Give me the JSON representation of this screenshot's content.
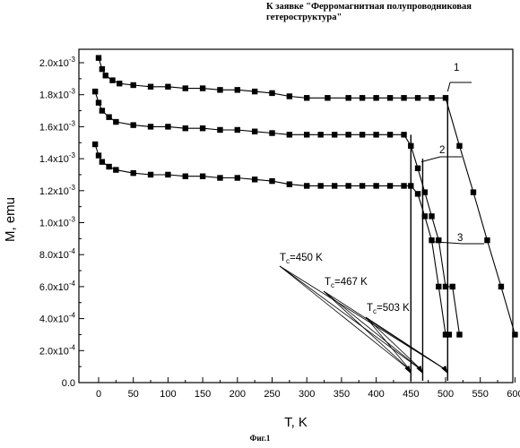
{
  "header": "К заявке \"Ферромагнитная полупроводниковая гетероструктура\"",
  "caption": "Фиг.1",
  "chart_data": {
    "type": "line",
    "xlabel": "T, K",
    "ylabel": "M, emu",
    "xlim": [
      -20,
      620
    ],
    "ylim": [
      0,
      0.0021
    ],
    "x_ticks": [
      0,
      50,
      100,
      150,
      200,
      250,
      300,
      350,
      400,
      450,
      500,
      550,
      600
    ],
    "y_ticks": [
      {
        "value": 0.0,
        "label": "0.0"
      },
      {
        "value": 0.0002,
        "label": "2.0x10-4",
        "mant": "2.0x10",
        "exp": "-4"
      },
      {
        "value": 0.0004,
        "label": "4.0x10-4",
        "mant": "4.0x10",
        "exp": "-4"
      },
      {
        "value": 0.0006,
        "label": "6.0x10-4",
        "mant": "6.0x10",
        "exp": "-4"
      },
      {
        "value": 0.0008,
        "label": "8.0x10-4",
        "mant": "8.0x10",
        "exp": "-4"
      },
      {
        "value": 0.001,
        "label": "1.0x10-3",
        "mant": "1.0x10",
        "exp": "-3"
      },
      {
        "value": 0.0012,
        "label": "1.2x10-3",
        "mant": "1.2x10",
        "exp": "-3"
      },
      {
        "value": 0.0014,
        "label": "1.4x10-3",
        "mant": "1.4x10",
        "exp": "-3"
      },
      {
        "value": 0.0016,
        "label": "1.6x10-3",
        "mant": "1.6x10",
        "exp": "-3"
      },
      {
        "value": 0.0018,
        "label": "1.8x10-3",
        "mant": "1.8x10",
        "exp": "-3"
      },
      {
        "value": 0.002,
        "label": "2.0x10-3",
        "mant": "2.0x10",
        "exp": "-3"
      }
    ],
    "grid": false,
    "series": [
      {
        "name": "1",
        "x": [
          0,
          5,
          10,
          20,
          30,
          50,
          75,
          100,
          125,
          150,
          175,
          200,
          225,
          250,
          275,
          300,
          330,
          360,
          380,
          400,
          420,
          440,
          460,
          480,
          500,
          520,
          540,
          560,
          580,
          600
        ],
        "y": [
          0.00203,
          0.00196,
          0.00192,
          0.00189,
          0.00187,
          0.00186,
          0.00185,
          0.00185,
          0.00184,
          0.00184,
          0.00183,
          0.00183,
          0.00182,
          0.00181,
          0.00179,
          0.00178,
          0.00178,
          0.00178,
          0.00178,
          0.00178,
          0.00178,
          0.00178,
          0.00178,
          0.00178,
          0.00178,
          0.00148,
          0.00119,
          0.00089,
          0.0006,
          0.0003
        ]
      },
      {
        "name": "2",
        "x": [
          -5,
          0,
          5,
          15,
          25,
          50,
          75,
          100,
          125,
          150,
          175,
          200,
          225,
          250,
          275,
          300,
          320,
          340,
          360,
          380,
          400,
          420,
          440,
          450,
          460,
          470,
          480,
          490,
          500,
          510,
          520
        ],
        "y": [
          0.00182,
          0.00175,
          0.0017,
          0.00166,
          0.00163,
          0.00161,
          0.0016,
          0.0016,
          0.00159,
          0.00159,
          0.00158,
          0.00158,
          0.00157,
          0.00156,
          0.00155,
          0.00155,
          0.00155,
          0.00155,
          0.00155,
          0.00155,
          0.00155,
          0.00155,
          0.00155,
          0.00148,
          0.00134,
          0.00119,
          0.00104,
          0.00089,
          0.0006,
          0.0006,
          0.0003
        ]
      },
      {
        "name": "3",
        "x": [
          -5,
          0,
          5,
          15,
          25,
          50,
          75,
          100,
          125,
          150,
          175,
          200,
          225,
          250,
          275,
          300,
          320,
          340,
          360,
          380,
          400,
          420,
          440,
          450,
          460,
          470,
          480,
          490,
          500,
          505
        ],
        "y": [
          0.00149,
          0.00142,
          0.00138,
          0.00135,
          0.00133,
          0.00131,
          0.0013,
          0.0013,
          0.00129,
          0.00129,
          0.00128,
          0.00128,
          0.00127,
          0.00126,
          0.00124,
          0.00123,
          0.00123,
          0.00123,
          0.00123,
          0.00123,
          0.00123,
          0.00123,
          0.00123,
          0.00123,
          0.00118,
          0.00104,
          0.00089,
          0.0006,
          0.0003,
          0.0003
        ]
      }
    ],
    "tc_lines": [
      {
        "T": 450,
        "top": 0.00155,
        "label": "Tc=450 K",
        "sub_base": "T",
        "sub": "c",
        "rest": "=450 K"
      },
      {
        "T": 467,
        "top": 0.0014,
        "label": "Tc=467 K",
        "sub_base": "T",
        "sub": "c",
        "rest": "=467 K"
      },
      {
        "T": 503,
        "top": 0.00178,
        "label": "Tc=503 K",
        "sub_base": "T",
        "sub": "c",
        "rest": "=503 K"
      }
    ]
  }
}
